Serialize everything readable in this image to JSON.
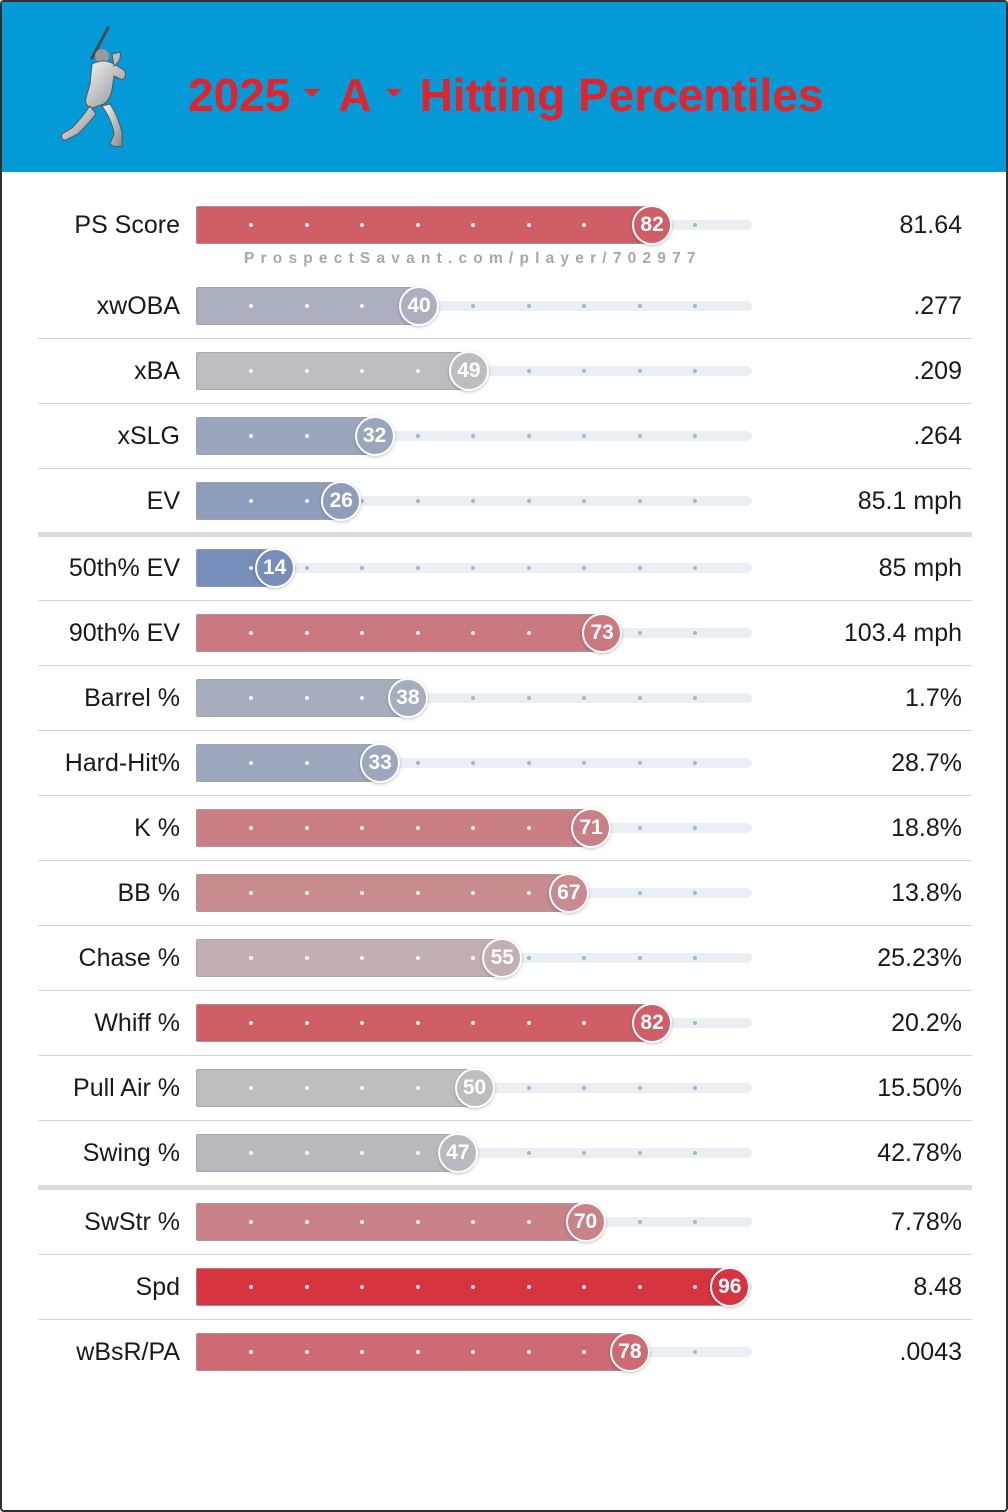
{
  "header": {
    "year": "2025",
    "level": "A",
    "title": "Hitting Percentiles",
    "logo_icon": "batter-silhouette-icon",
    "background_color": "#049ad7",
    "title_color": "#e4222a"
  },
  "watermark": "ProspectSavant.com/player/702977",
  "chart_data": {
    "type": "bar",
    "orientation": "horizontal",
    "xlim": [
      0,
      100
    ],
    "title": "2025 A Hitting Percentiles",
    "metrics": [
      {
        "label": "PS Score",
        "percentile": 82,
        "value": "81.64"
      },
      {
        "label": "xwOBA",
        "percentile": 40,
        "value": ".277"
      },
      {
        "label": "xBA",
        "percentile": 49,
        "value": ".209"
      },
      {
        "label": "xSLG",
        "percentile": 32,
        "value": ".264"
      },
      {
        "label": "EV",
        "percentile": 26,
        "value": "85.1 mph"
      },
      {
        "label": "50th% EV",
        "percentile": 14,
        "value": "85 mph"
      },
      {
        "label": "90th% EV",
        "percentile": 73,
        "value": "103.4 mph"
      },
      {
        "label": "Barrel %",
        "percentile": 38,
        "value": "1.7%"
      },
      {
        "label": "Hard-Hit%",
        "percentile": 33,
        "value": "28.7%"
      },
      {
        "label": "K %",
        "percentile": 71,
        "value": "18.8%"
      },
      {
        "label": "BB %",
        "percentile": 67,
        "value": "13.8%"
      },
      {
        "label": "Chase %",
        "percentile": 55,
        "value": "25.23%"
      },
      {
        "label": "Whiff %",
        "percentile": 82,
        "value": "20.2%"
      },
      {
        "label": "Pull Air %",
        "percentile": 50,
        "value": "15.50%"
      },
      {
        "label": "Swing %",
        "percentile": 47,
        "value": "42.78%"
      },
      {
        "label": "SwStr %",
        "percentile": 70,
        "value": "7.78%"
      },
      {
        "label": "Spd",
        "percentile": 96,
        "value": "8.48"
      },
      {
        "label": "wBsR/PA",
        "percentile": 78,
        "value": ".0043"
      }
    ]
  }
}
